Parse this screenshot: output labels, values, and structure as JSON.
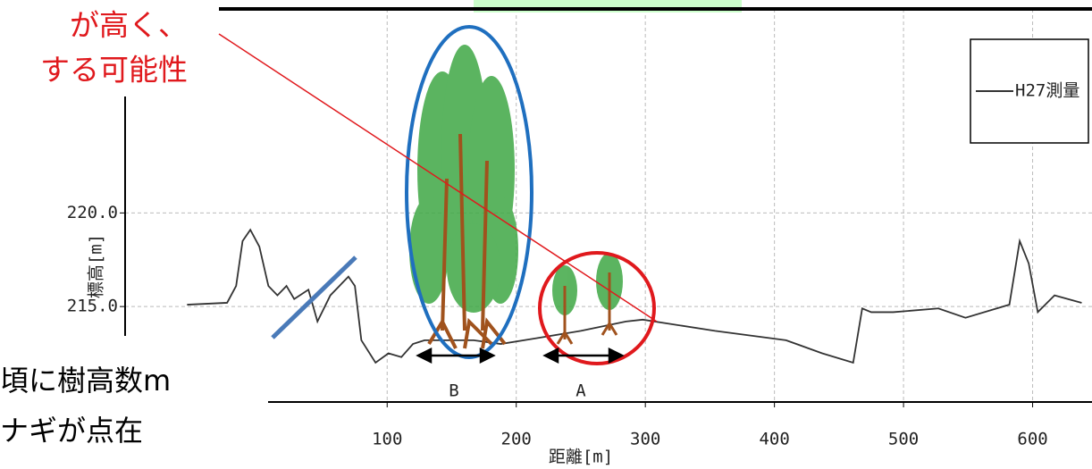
{
  "chart_data": {
    "type": "line",
    "x_label": "距離[m]",
    "y_label": "標高[m]",
    "x": [
      -55,
      -24,
      -17,
      -12,
      -6,
      1,
      8,
      15,
      22,
      28,
      39,
      46,
      56,
      63,
      70,
      75,
      80,
      91,
      101,
      111,
      120,
      129,
      146,
      167,
      188,
      215,
      250,
      285,
      298,
      354,
      409,
      437,
      461,
      468,
      475,
      492,
      527,
      548,
      582,
      590,
      597,
      604,
      617,
      638
    ],
    "series": [
      {
        "name": "H27測量",
        "color": "#333333",
        "values": [
          215.1,
          215.2,
          216.1,
          218.5,
          219.1,
          218.2,
          216.1,
          215.6,
          216.1,
          215.4,
          215.9,
          214.2,
          215.6,
          216.1,
          216.6,
          216.1,
          213.2,
          212.0,
          212.5,
          212.3,
          213.0,
          213.2,
          213.2,
          213.2,
          213.0,
          213.3,
          213.7,
          214.2,
          214.3,
          213.7,
          213.2,
          212.5,
          212.0,
          214.9,
          214.7,
          214.7,
          214.9,
          214.4,
          215.1,
          218.5,
          217.3,
          214.7,
          215.6,
          215.2
        ]
      }
    ],
    "xlim": [
      -103,
      646
    ],
    "ylim": [
      209.9,
      230.9
    ],
    "xticks": [
      100,
      200,
      300,
      400,
      500,
      600
    ],
    "yticks": [
      {
        "value": 215,
        "label": "215.0"
      },
      {
        "value": 220,
        "label": "220.0"
      }
    ],
    "grid": true,
    "legend": "upper right",
    "annotations": {
      "top_note": [
        "が高く、",
        "する可能性"
      ],
      "bottom_note": [
        "頃に樹高数m",
        "ナギが点在"
      ],
      "zone_b": "B",
      "zone_a": "A"
    }
  }
}
